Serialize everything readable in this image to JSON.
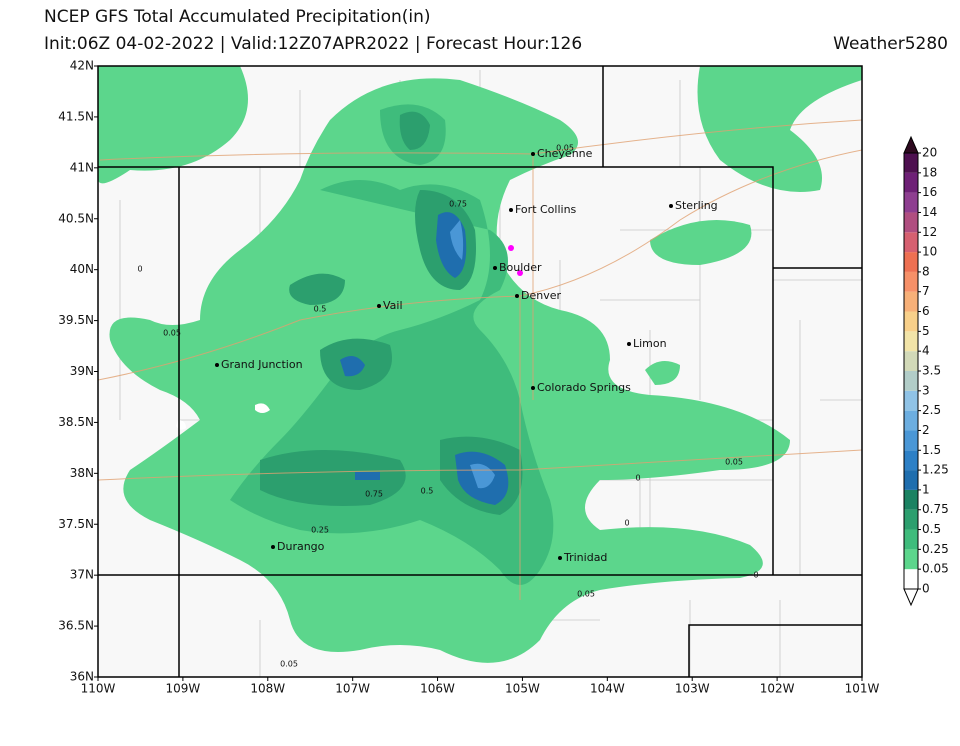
{
  "header": {
    "title": "NCEP GFS Total Accumulated Precipitation(in)",
    "subtitle": "Init:06Z 04-02-2022 | Valid:12Z07APR2022 | Forecast Hour:126",
    "brand": "Weather5280"
  },
  "map": {
    "x_labels": [
      "110W",
      "109W",
      "108W",
      "107W",
      "106W",
      "105W",
      "104W",
      "103W",
      "102W",
      "101W"
    ],
    "y_labels": [
      "42N",
      "41.5N",
      "41N",
      "40.5N",
      "40N",
      "39.5N",
      "39N",
      "38.5N",
      "38N",
      "37.5N",
      "37N",
      "36.5N",
      "36N"
    ],
    "cities": [
      "Cheyenne",
      "Fort Collins",
      "Sterling",
      "Boulder",
      "Denver",
      "Vail",
      "Limon",
      "Grand Junction",
      "Colorado Springs",
      "Durango",
      "Trinidad"
    ],
    "contour_labels": [
      "0.05",
      "0.75",
      "0",
      "0.5",
      "0.05",
      "0.05",
      "0",
      "0.75",
      "0.5",
      "0",
      "0.25",
      "0",
      "0.05",
      "0.05"
    ]
  },
  "legend": {
    "levels": [
      0,
      0.05,
      0.25,
      0.5,
      0.75,
      1,
      1.25,
      1.5,
      2,
      2.5,
      3,
      3.5,
      4,
      5,
      6,
      7,
      8,
      10,
      12,
      14,
      16,
      18,
      20
    ],
    "colors": [
      "#ffffff",
      "#ffffff",
      "#5cd68c",
      "#3fbc7c",
      "#2c9f6e",
      "#1b8262",
      "#1f6eae",
      "#2d80c6",
      "#4a97d6",
      "#6caee0",
      "#90c3e6",
      "#b2cdc8",
      "#d2d9b8",
      "#f2e4a8",
      "#f8d08a",
      "#f7b078",
      "#f69068",
      "#ee7052",
      "#d66070",
      "#b04e80",
      "#8e3e90",
      "#6e2076",
      "#4e1050",
      "#2e0a20"
    ]
  }
}
